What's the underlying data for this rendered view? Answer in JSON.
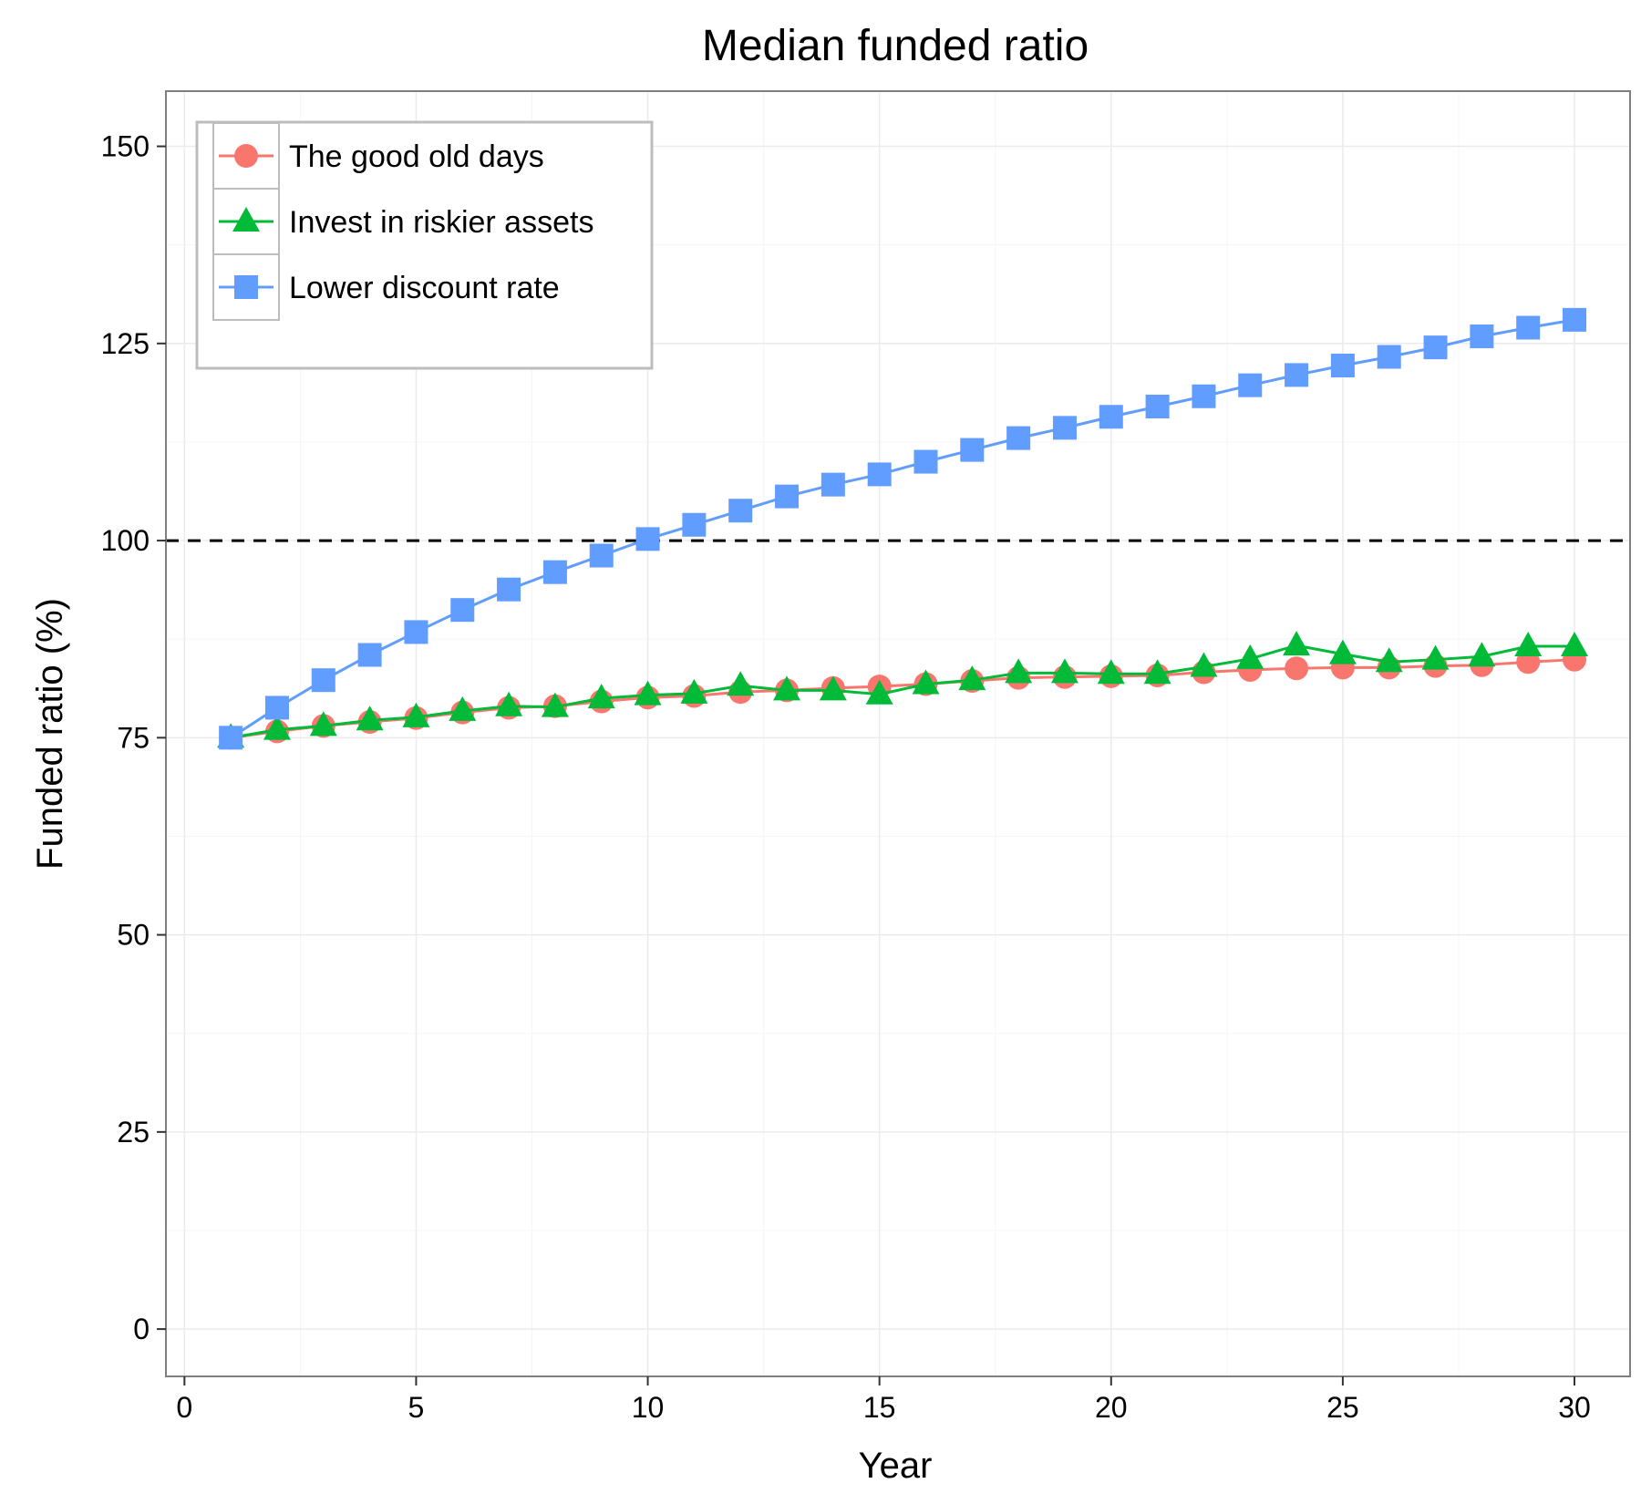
{
  "chart_data": {
    "type": "line",
    "title": "Median funded ratio",
    "xlabel": "Year",
    "ylabel": "Funded ratio (%)",
    "xlim": [
      -0.4,
      31.2
    ],
    "ylim": [
      -6,
      157
    ],
    "xticks": [
      0,
      5,
      10,
      15,
      20,
      25,
      30
    ],
    "yticks": [
      0,
      25,
      50,
      75,
      100,
      125,
      150
    ],
    "grid": true,
    "legend_position": "top-left",
    "reference_line": {
      "y": 100,
      "style": "dashed",
      "color": "#000000"
    },
    "x": [
      1,
      2,
      3,
      4,
      5,
      6,
      7,
      8,
      9,
      10,
      11,
      12,
      13,
      14,
      15,
      16,
      17,
      18,
      19,
      20,
      21,
      22,
      23,
      24,
      25,
      26,
      27,
      28,
      29,
      30
    ],
    "series": [
      {
        "name": "The good old days",
        "color": "#F8766D",
        "marker": "circle",
        "values": [
          75,
          75.8,
          76.5,
          77,
          77.5,
          78.2,
          78.8,
          79,
          79.6,
          80.1,
          80.3,
          80.8,
          81,
          81.3,
          81.5,
          81.8,
          82.2,
          82.6,
          82.7,
          82.8,
          82.9,
          83.3,
          83.6,
          83.8,
          83.9,
          83.9,
          84.1,
          84.2,
          84.6,
          84.9
        ]
      },
      {
        "name": "Invest in riskier assets",
        "color": "#00BA38",
        "marker": "triangle",
        "values": [
          75,
          76,
          76.5,
          77.2,
          77.6,
          78.4,
          79,
          78.9,
          80,
          80.4,
          80.6,
          81.6,
          81,
          81,
          80.5,
          81.8,
          82.3,
          83.2,
          83.2,
          83.1,
          83.1,
          84,
          85,
          86.7,
          85.6,
          84.6,
          84.9,
          85.3,
          86.6,
          86.6
        ]
      },
      {
        "name": "Lower discount rate",
        "color": "#619CFF",
        "marker": "square",
        "values": [
          75,
          78.8,
          82.3,
          85.5,
          88.4,
          91.2,
          93.8,
          96,
          98.1,
          100.2,
          102,
          103.8,
          105.6,
          107.1,
          108.4,
          110,
          111.5,
          113,
          114.3,
          115.7,
          117,
          118.3,
          119.7,
          121,
          122.2,
          123.3,
          124.5,
          125.9,
          127,
          128
        ]
      }
    ]
  },
  "colors": {
    "panel_border": "#7f7f7f",
    "grid_major": "#ebebeb",
    "grid_minor": "#f5f5f5",
    "legend_border": "#bdbdbd"
  }
}
